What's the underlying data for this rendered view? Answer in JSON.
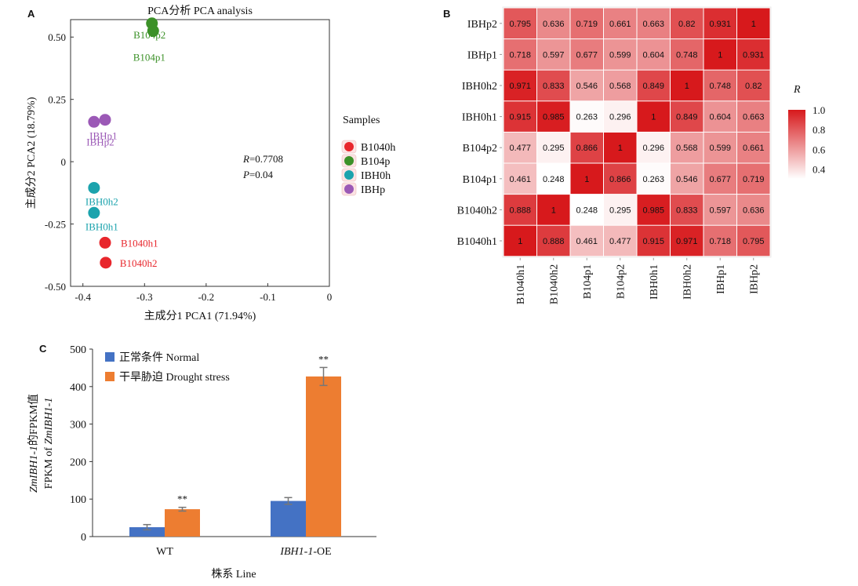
{
  "chart_data": [
    {
      "panel": "A",
      "type": "scatter",
      "title": "PCA分析 PCA analysis",
      "xlabel": "主成分1 PCA1 (71.94%)",
      "ylabel": "主成分2 PCA2 (18.79%)",
      "xlim": [
        -0.42,
        0.0
      ],
      "ylim": [
        -0.5,
        0.57
      ],
      "xticks": [
        "-0.4",
        "-0.3",
        "-0.2",
        "-0.1",
        "0"
      ],
      "yticks": [
        "0.50",
        "0.25",
        "0",
        "-0.25",
        "-0.50"
      ],
      "annotation_r": "R=0.7708",
      "annotation_p": "P=0.04",
      "legend_title": "Samples",
      "legend": [
        {
          "name": "B1040h",
          "color": "#e8262c"
        },
        {
          "name": "B104p",
          "color": "#3c9128"
        },
        {
          "name": "IBH0h",
          "color": "#1ba3ad"
        },
        {
          "name": "IBHp",
          "color": "#9b59b6"
        }
      ],
      "points": [
        {
          "label": "B104p2",
          "group": "B104p",
          "x": -0.288,
          "y": 0.555
        },
        {
          "label": "B104p1",
          "group": "B104p",
          "x": -0.286,
          "y": 0.525
        },
        {
          "label": "IBHp1",
          "group": "IBHp",
          "x": -0.382,
          "y": 0.16
        },
        {
          "label": "IBHp2",
          "group": "IBHp",
          "x": -0.364,
          "y": 0.168
        },
        {
          "label": "IBH0h2",
          "group": "IBH0h",
          "x": -0.382,
          "y": -0.105
        },
        {
          "label": "IBH0h1",
          "group": "IBH0h",
          "x": -0.382,
          "y": -0.205
        },
        {
          "label": "B1040h1",
          "group": "B1040h",
          "x": -0.364,
          "y": -0.325
        },
        {
          "label": "B1040h2",
          "group": "B1040h",
          "x": -0.363,
          "y": -0.405
        }
      ]
    },
    {
      "panel": "B",
      "type": "heatmap",
      "rows": [
        "IBHp2",
        "IBHp1",
        "IBH0h2",
        "IBH0h1",
        "B104p2",
        "B104p1",
        "B1040h2",
        "B1040h1"
      ],
      "columns": [
        "B1040h1",
        "B1040h2",
        "B104p1",
        "B104p2",
        "IBH0h1",
        "IBH0h2",
        "IBHp1",
        "IBHp2"
      ],
      "values": [
        [
          "0.795",
          "0.636",
          "0.719",
          "0.661",
          "0.663",
          "0.82",
          "0.931",
          "1"
        ],
        [
          "0.718",
          "0.597",
          "0.677",
          "0.599",
          "0.604",
          "0.748",
          "1",
          "0.931"
        ],
        [
          "0.971",
          "0.833",
          "0.546",
          "0.568",
          "0.849",
          "1",
          "0.748",
          "0.82"
        ],
        [
          "0.915",
          "0.985",
          "0.263",
          "0.296",
          "1",
          "0.849",
          "0.604",
          "0.663"
        ],
        [
          "0.477",
          "0.295",
          "0.866",
          "1",
          "0.296",
          "0.568",
          "0.599",
          "0.661"
        ],
        [
          "0.461",
          "0.248",
          "1",
          "0.866",
          "0.263",
          "0.546",
          "0.677",
          "0.719"
        ],
        [
          "0.888",
          "1",
          "0.248",
          "0.295",
          "0.985",
          "0.833",
          "0.597",
          "0.636"
        ],
        [
          "1",
          "0.888",
          "0.461",
          "0.477",
          "0.915",
          "0.971",
          "0.718",
          "0.795"
        ]
      ],
      "colorbar_title": "R",
      "colorbar_ticks": [
        "1.0",
        "0.8",
        "0.6",
        "0.4"
      ],
      "color_range": [
        0.25,
        1.0
      ],
      "colors": {
        "low": "#ffffff",
        "high": "#d7191c"
      }
    },
    {
      "panel": "C",
      "type": "bar",
      "categories": [
        "WT",
        "IBH1-1-OE"
      ],
      "category_suffix": "-OE",
      "category_italic": "IBH1-1",
      "xlabel": "株系 Line",
      "ylabel_italic_1": "ZmIBH1-1",
      "ylabel_rest_1": "的FPKM值",
      "ylabel_prefix_2": "FPKM of ",
      "ylabel_italic_2": "ZmIBH1-1",
      "ylim": [
        0,
        500
      ],
      "yticks": [
        "0",
        "100",
        "200",
        "300",
        "400",
        "500"
      ],
      "series": [
        {
          "name": "正常条件 Normal",
          "color": "#4472c4",
          "values": [
            25,
            95
          ],
          "errors": [
            7,
            9
          ],
          "sig": [
            "",
            ""
          ]
        },
        {
          "name": "干旱胁迫 Drought stress",
          "color": "#ed7d31",
          "values": [
            73,
            427
          ],
          "errors": [
            5,
            24
          ],
          "sig": [
            "**",
            "**"
          ]
        }
      ]
    }
  ]
}
